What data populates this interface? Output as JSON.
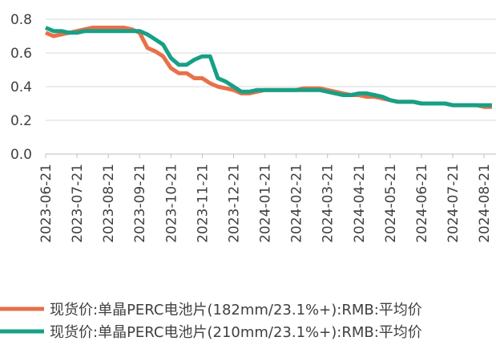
{
  "chart_data": {
    "type": "line",
    "categories": [
      "2023-06-21",
      null,
      null,
      null,
      "2023-07-21",
      null,
      null,
      null,
      "2023-08-21",
      null,
      null,
      null,
      "2023-09-21",
      null,
      null,
      null,
      "2023-10-21",
      null,
      null,
      null,
      "2023-11-21",
      null,
      null,
      null,
      "2023-12-21",
      null,
      null,
      null,
      "2024-01-21",
      null,
      null,
      null,
      "2024-02-21",
      null,
      null,
      null,
      "2024-03-21",
      null,
      null,
      null,
      "2024-04-21",
      null,
      null,
      null,
      "2024-05-21",
      null,
      null,
      null,
      "2024-06-21",
      null,
      null,
      null,
      "2024-07-21",
      null,
      null,
      null,
      "2024-08-21",
      null
    ],
    "series": [
      {
        "name": "现货价:单晶PERC电池片(182mm/23.1%+):RMB:平均价",
        "color": "#e8704a",
        "values": [
          0.72,
          0.7,
          0.71,
          0.72,
          0.73,
          0.74,
          0.75,
          0.75,
          0.75,
          0.75,
          0.75,
          0.74,
          0.72,
          0.63,
          0.61,
          0.58,
          0.51,
          0.48,
          0.48,
          0.45,
          0.45,
          0.42,
          0.4,
          0.39,
          0.38,
          0.36,
          0.36,
          0.37,
          0.38,
          0.38,
          0.38,
          0.38,
          0.38,
          0.39,
          0.39,
          0.39,
          0.38,
          0.37,
          0.36,
          0.35,
          0.35,
          0.34,
          0.34,
          0.33,
          0.32,
          0.31,
          0.31,
          0.31,
          0.3,
          0.3,
          0.3,
          0.3,
          0.29,
          0.29,
          0.29,
          0.29,
          0.28,
          0.28
        ]
      },
      {
        "name": "现货价:单晶PERC电池片(210mm/23.1%+):RMB:平均价",
        "color": "#17a085",
        "values": [
          0.75,
          0.73,
          0.73,
          0.72,
          0.72,
          0.73,
          0.73,
          0.73,
          0.73,
          0.73,
          0.73,
          0.73,
          0.73,
          0.71,
          0.68,
          0.65,
          0.57,
          0.53,
          0.53,
          0.56,
          0.58,
          0.58,
          0.45,
          0.43,
          0.4,
          0.37,
          0.37,
          0.38,
          0.38,
          0.38,
          0.38,
          0.38,
          0.38,
          0.38,
          0.38,
          0.38,
          0.37,
          0.36,
          0.35,
          0.35,
          0.36,
          0.36,
          0.35,
          0.34,
          0.32,
          0.31,
          0.31,
          0.31,
          0.3,
          0.3,
          0.3,
          0.3,
          0.29,
          0.29,
          0.29,
          0.29,
          0.29,
          0.29
        ]
      }
    ],
    "ylim": [
      0,
      0.8
    ],
    "yticks": [
      {
        "value": 0,
        "label": "0.0"
      },
      0.2,
      0.4,
      0.6,
      0.8
    ],
    "grid": true,
    "legend": "bottom"
  }
}
